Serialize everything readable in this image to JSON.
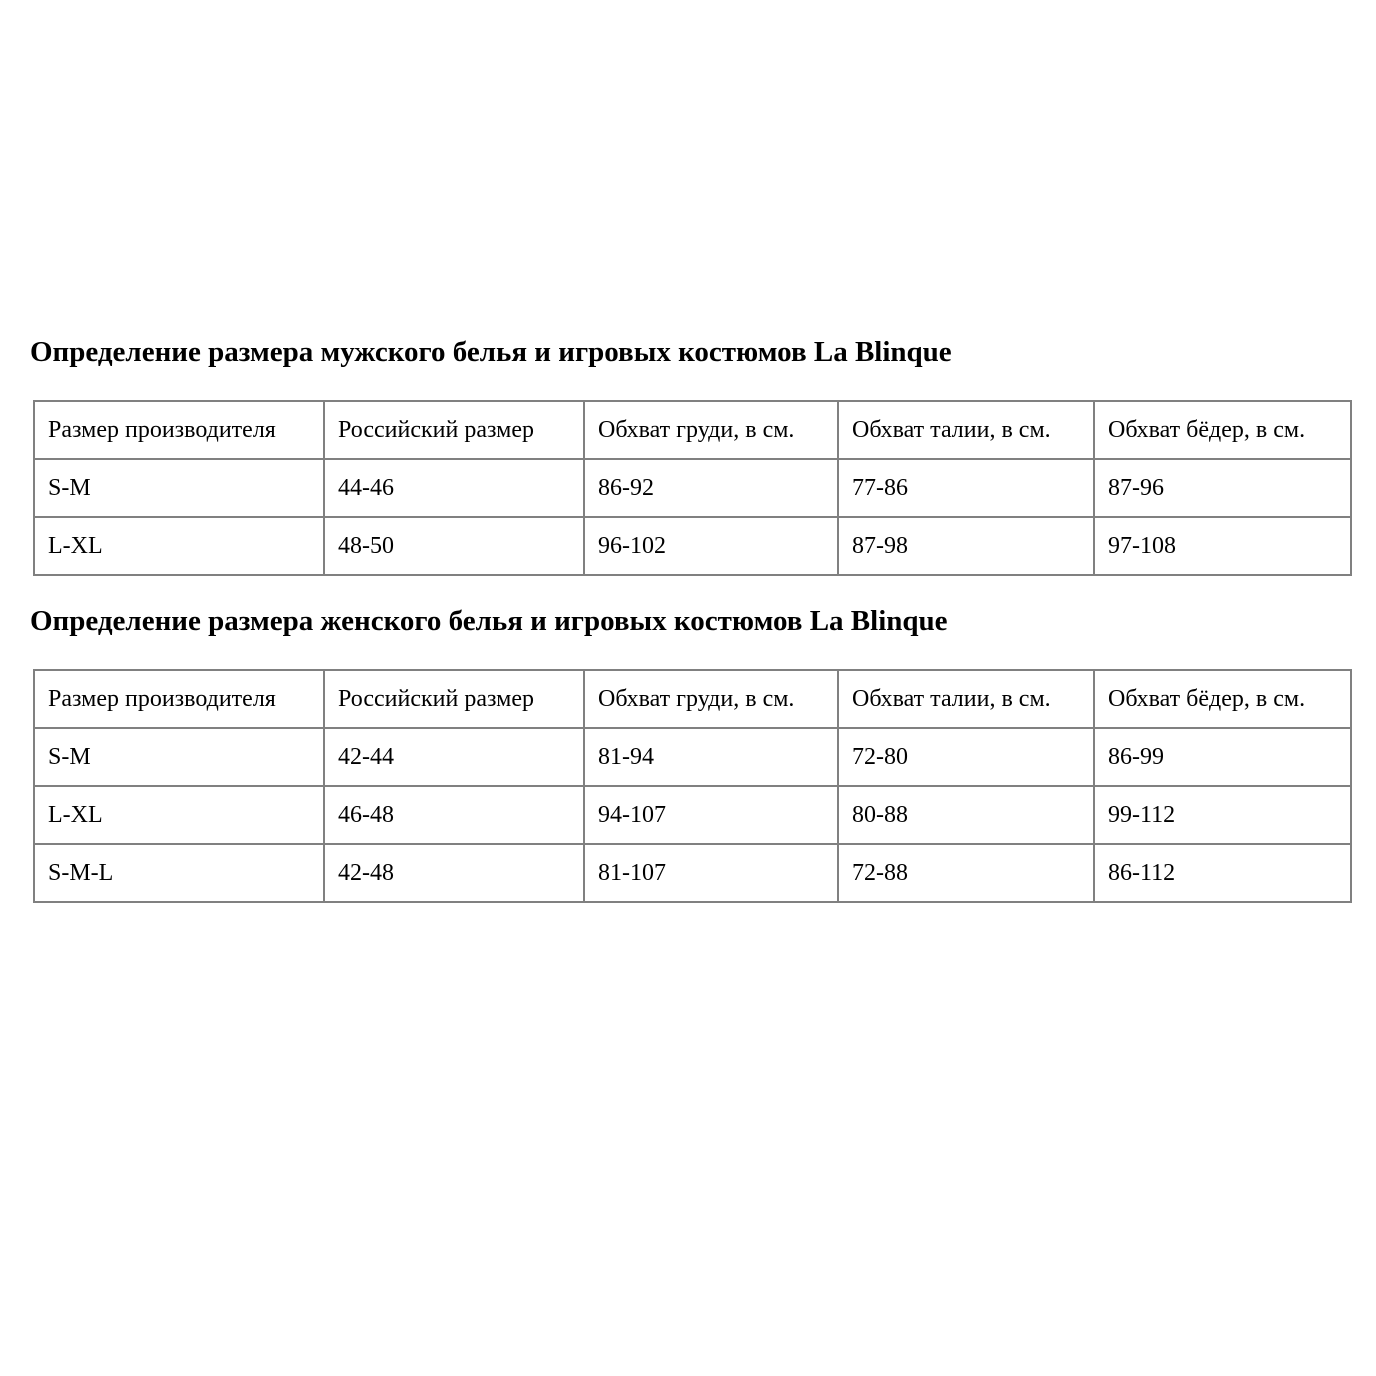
{
  "colors": {
    "border": "#808080",
    "text": "#000000",
    "background": "#ffffff"
  },
  "sections": [
    {
      "heading": "Определение размера мужского белья и игровых костюмов La Blinque",
      "table": {
        "headers": [
          "Размер производителя",
          "Российский размер",
          "Обхват груди, в см.",
          "Обхват талии, в см.",
          "Обхват бёдер, в см."
        ],
        "rows": [
          [
            "S-M",
            "44-46",
            "86-92",
            "77-86",
            "87-96"
          ],
          [
            "L-XL",
            "48-50",
            "96-102",
            "87-98",
            "97-108"
          ]
        ]
      }
    },
    {
      "heading": "Определение размера женского белья и игровых костюмов La Blinque",
      "table": {
        "headers": [
          "Размер производителя",
          "Российский размер",
          "Обхват груди, в см.",
          "Обхват талии, в см.",
          "Обхват бёдер, в см."
        ],
        "rows": [
          [
            "S-M",
            "42-44",
            "81-94",
            "72-80",
            "86-99"
          ],
          [
            "L-XL",
            "46-48",
            "94-107",
            "80-88",
            "99-112"
          ],
          [
            "S-M-L",
            "42-48",
            "81-107",
            "72-88",
            "86-112"
          ]
        ]
      }
    }
  ]
}
